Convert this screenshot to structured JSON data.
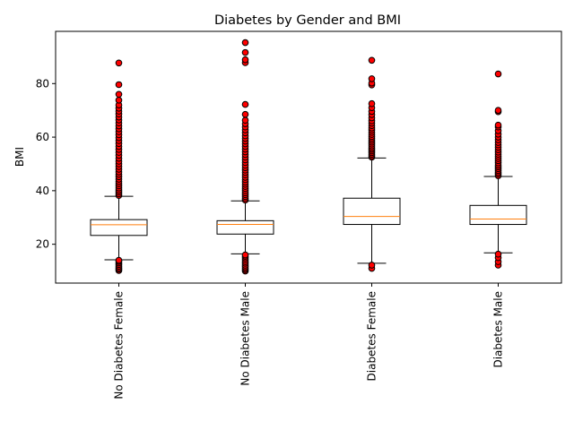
{
  "chart_data": {
    "type": "boxplot",
    "title": "Diabetes by Gender and BMI",
    "xlabel": "",
    "ylabel": "BMI",
    "ylim": [
      5.5,
      99.5
    ],
    "yticks": [
      20,
      40,
      60,
      80
    ],
    "categories": [
      "No Diabetes Female",
      "No Diabetes Male",
      "Diabetes Female",
      "Diabetes Male"
    ],
    "boxes": [
      {
        "category": "No Diabetes Female",
        "whisker_low": 14.2,
        "q1": 23.3,
        "median": 27.3,
        "q3": 29.2,
        "whisker_high": 37.9,
        "outliers": [
          10.2,
          10.7,
          11.2,
          11.8,
          12.4,
          13.0,
          13.6,
          14.0,
          38.2,
          38.8,
          39.5,
          40.2,
          41.0,
          41.8,
          42.6,
          43.4,
          44.3,
          45.2,
          46.1,
          47.0,
          48.0,
          49.0,
          50.0,
          51.0,
          52.1,
          53.2,
          54.3,
          55.4,
          56.5,
          57.6,
          58.7,
          59.8,
          60.9,
          62.0,
          63.1,
          64.2,
          65.3,
          66.4,
          67.5,
          68.6,
          69.7,
          70.8,
          72.0,
          73.8,
          76.0,
          79.6,
          87.7
        ]
      },
      {
        "category": "No Diabetes Male",
        "whisker_low": 16.4,
        "q1": 23.8,
        "median": 27.4,
        "q3": 28.8,
        "whisker_high": 36.2,
        "outliers": [
          10.0,
          10.5,
          11.0,
          11.6,
          12.2,
          12.9,
          13.5,
          14.2,
          14.9,
          15.5,
          16.0,
          36.5,
          37.1,
          37.8,
          38.5,
          39.2,
          40.0,
          40.8,
          41.6,
          42.4,
          43.2,
          44.1,
          45.0,
          45.9,
          46.8,
          47.7,
          48.6,
          49.5,
          50.5,
          51.5,
          52.5,
          53.5,
          54.5,
          55.5,
          56.5,
          57.5,
          58.5,
          59.5,
          60.5,
          61.6,
          62.7,
          63.8,
          65.0,
          66.3,
          68.5,
          72.2,
          87.8,
          88.9,
          91.6,
          95.3
        ]
      },
      {
        "category": "Diabetes Female",
        "whisker_low": 12.9,
        "q1": 27.4,
        "median": 30.4,
        "q3": 37.2,
        "whisker_high": 52.2,
        "outliers": [
          11.0,
          12.2,
          52.5,
          53.0,
          53.6,
          54.2,
          54.8,
          55.4,
          56.0,
          56.7,
          57.4,
          58.1,
          58.8,
          59.5,
          60.2,
          61.0,
          61.8,
          62.6,
          63.4,
          64.3,
          65.2,
          66.1,
          67.2,
          68.4,
          69.6,
          71.0,
          72.5,
          79.5,
          80.2,
          81.8,
          88.7
        ]
      },
      {
        "category": "Diabetes Male",
        "whisker_low": 16.8,
        "q1": 27.4,
        "median": 29.4,
        "q3": 34.5,
        "whisker_high": 45.3,
        "outliers": [
          12.2,
          13.5,
          15.0,
          16.3,
          45.6,
          46.2,
          46.8,
          47.5,
          48.2,
          48.9,
          49.6,
          50.4,
          51.2,
          52.0,
          52.8,
          53.6,
          54.4,
          55.3,
          56.2,
          57.1,
          58.0,
          59.0,
          60.0,
          61.1,
          62.4,
          63.8,
          64.5,
          69.5,
          70.0,
          83.6
        ]
      }
    ],
    "colors": {
      "box": "#000000",
      "median": "#ff7f0e",
      "outlier_fill": "#ff0000",
      "outlier_edge": "#000000"
    },
    "grid": false,
    "legend": "none"
  }
}
